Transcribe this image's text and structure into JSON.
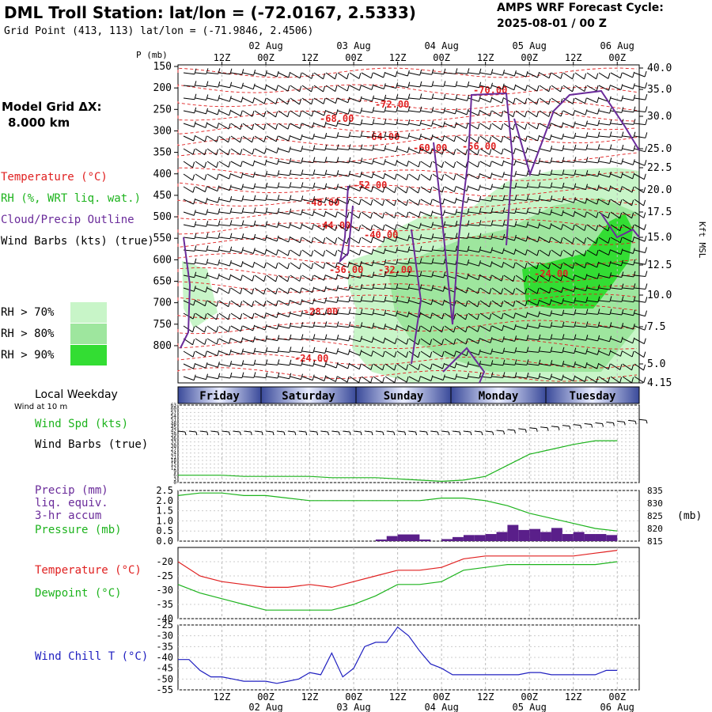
{
  "header": {
    "title": "DML Troll Station:  lat/lon = (-72.0167, 2.5333)",
    "subtitle": "Grid Point (413, 113) lat/lon = (-71.9846, 2.4506)",
    "cycle_line1": "AMPS WRF Forecast Cycle:",
    "cycle_line2": "2025-08-01 / 00  Z"
  },
  "left_labels": {
    "model_grid": "Model Grid ΔX:",
    "model_grid_value": "8.000 km",
    "temperature": "Temperature (°C)",
    "rh": "RH (%, WRT liq. wat.)",
    "cloud": "Cloud/Precip Outline",
    "wind_barbs": "Wind Barbs (kts) (true)",
    "rh70": "RH > 70%",
    "rh80": "RH > 80%",
    "rh90": "RH > 90%",
    "local_weekday": "Local Weekday",
    "wind_at_10m": "Wind at 10 m",
    "wind_spd": "Wind Spd (kts)",
    "wind_barbs2": "Wind Barbs (true)",
    "precip1": "Precip (mm)",
    "precip2": "liq. equiv.",
    "precip3": "3-hr accum",
    "pressure": "Pressure (mb)",
    "temp2": "Temperature (°C)",
    "dewpoint": "Dewpoint (°C)",
    "windchill": "Wind Chill T (°C)",
    "p_axis_label": "P (mb)",
    "kft_label": "Kft MSL",
    "mb_label": "(mb)"
  },
  "colors": {
    "temperature": "#e02020",
    "rh": "#1db31d",
    "cloud": "#6a2b9a",
    "wind": "#000000",
    "rh70": "#c8f5c8",
    "rh80": "#9ee69e",
    "rh90": "#33dd33",
    "windchill": "#2020c0",
    "precip_bar": "#5a1f8a"
  },
  "time_axis": {
    "top_hours": [
      "12Z",
      "00Z",
      "12Z",
      "00Z",
      "12Z",
      "00Z",
      "12Z",
      "00Z",
      "12Z",
      "00Z"
    ],
    "top_dates": [
      "02 Aug",
      "03 Aug",
      "04 Aug",
      "05 Aug",
      "06 Aug"
    ],
    "weekdays": [
      "Friday",
      "Saturday",
      "Sunday",
      "Monday",
      "Tuesday"
    ]
  },
  "chart_data": [
    {
      "type": "line",
      "name": "upper-air time-height section",
      "pressure_ticks": [
        "150",
        "200",
        "250",
        "300",
        "350",
        "400",
        "450",
        "500",
        "550",
        "600",
        "650",
        "700",
        "750",
        "800"
      ],
      "height_ticks_kft": [
        "40.0",
        "35.0",
        "30.0",
        "25.0",
        "22.5",
        "20.0",
        "17.5",
        "15.0",
        "12.5",
        "10.0",
        "7.5",
        "5.0",
        "4.15"
      ],
      "isotherm_labels": [
        "-70.00",
        "-72.00",
        "-68.00",
        "-64.00",
        "-60.00",
        "-56.00",
        "-52.00",
        "-48.00",
        "-44.00",
        "-40.00",
        "-36.00",
        "-32.00",
        "-28.00",
        "-24.00",
        "-24.00"
      ],
      "ylabel": "P (mb)"
    },
    {
      "type": "line",
      "name": "wind speed at 10 m",
      "ylabel": "Wind Spd (kts)",
      "yticks": [
        "0",
        "3",
        "6",
        "9",
        "12",
        "15",
        "18",
        "21",
        "24",
        "27",
        "30",
        "33",
        "36",
        "39",
        "42",
        "45",
        "48",
        "51",
        "54",
        "57",
        "60",
        "63"
      ],
      "ylim": [
        0,
        63
      ],
      "x_hours": [
        0,
        6,
        12,
        18,
        24,
        30,
        36,
        42,
        48,
        54,
        60,
        66,
        72,
        78,
        84,
        90,
        96,
        102,
        108,
        114,
        120
      ],
      "values": [
        6,
        6,
        6,
        5,
        5,
        5,
        5,
        4,
        4,
        4,
        3,
        2,
        1,
        2,
        5,
        14,
        23,
        27,
        31,
        34,
        34
      ]
    },
    {
      "type": "bar",
      "name": "precip and pressure",
      "yticks_left": [
        "0.0",
        "0.5",
        "1.0",
        "1.5",
        "2.0",
        "2.5"
      ],
      "yticks_right": [
        "815",
        "820",
        "825",
        "830",
        "835"
      ],
      "precip_hours": [
        54,
        57,
        60,
        63,
        66,
        72,
        75,
        78,
        81,
        84,
        87,
        90,
        93,
        96,
        99,
        102,
        105,
        108,
        111,
        114,
        117
      ],
      "precip_values": [
        0.08,
        0.25,
        0.33,
        0.33,
        0.08,
        0.1,
        0.2,
        0.3,
        0.3,
        0.35,
        0.45,
        0.8,
        0.55,
        0.6,
        0.45,
        0.65,
        0.35,
        0.45,
        0.35,
        0.35,
        0.3
      ],
      "pressure_hours": [
        0,
        6,
        12,
        18,
        24,
        30,
        36,
        42,
        48,
        54,
        60,
        66,
        72,
        78,
        84,
        90,
        96,
        102,
        108,
        114,
        120
      ],
      "pressure_values": [
        833,
        834,
        834,
        833,
        833,
        832,
        831,
        831,
        831,
        831,
        831,
        831,
        832,
        832,
        831,
        829,
        826,
        824,
        822,
        820,
        819
      ]
    },
    {
      "type": "line",
      "name": "temperature and dewpoint",
      "yticks": [
        "-20",
        "-25",
        "-30",
        "-35",
        "-40"
      ],
      "ylim": [
        -40,
        -15
      ],
      "x_hours": [
        0,
        6,
        12,
        18,
        24,
        30,
        36,
        42,
        48,
        54,
        60,
        66,
        72,
        78,
        84,
        90,
        96,
        102,
        108,
        114,
        120
      ],
      "series": [
        {
          "name": "Temperature",
          "values": [
            -20,
            -25,
            -27,
            -28,
            -29,
            -29,
            -28,
            -29,
            -27,
            -25,
            -23,
            -23,
            -22,
            -19,
            -18,
            -18,
            -18,
            -18,
            -18,
            -17,
            -16
          ]
        },
        {
          "name": "Dewpoint",
          "values": [
            -28,
            -31,
            -33,
            -35,
            -37,
            -37,
            -37,
            -37,
            -35,
            -32,
            -28,
            -28,
            -27,
            -23,
            -22,
            -21,
            -21,
            -21,
            -21,
            -21,
            -20
          ]
        }
      ]
    },
    {
      "type": "line",
      "name": "wind chill",
      "yticks": [
        "-25",
        "-30",
        "-35",
        "-40",
        "-45",
        "-50",
        "-55"
      ],
      "ylim": [
        -55,
        -25
      ],
      "x_hours": [
        0,
        3,
        6,
        9,
        12,
        15,
        18,
        21,
        24,
        27,
        30,
        33,
        36,
        39,
        42,
        45,
        48,
        51,
        54,
        57,
        60,
        63,
        66,
        69,
        72,
        75,
        78,
        81,
        84,
        87,
        90,
        93,
        96,
        99,
        102,
        105,
        108,
        111,
        114,
        117,
        120
      ],
      "values": [
        -41,
        -41,
        -46,
        -49,
        -49,
        -50,
        -51,
        -51,
        -51,
        -52,
        -51,
        -50,
        -47,
        -48,
        -38,
        -49,
        -45,
        -35,
        -33,
        -33,
        -26,
        -30,
        -37,
        -43,
        -45,
        -48,
        -48,
        -48,
        -48,
        -48,
        -48,
        -48,
        -47,
        -47,
        -48,
        -48,
        -48,
        -48,
        -48,
        -46,
        -46
      ]
    }
  ]
}
